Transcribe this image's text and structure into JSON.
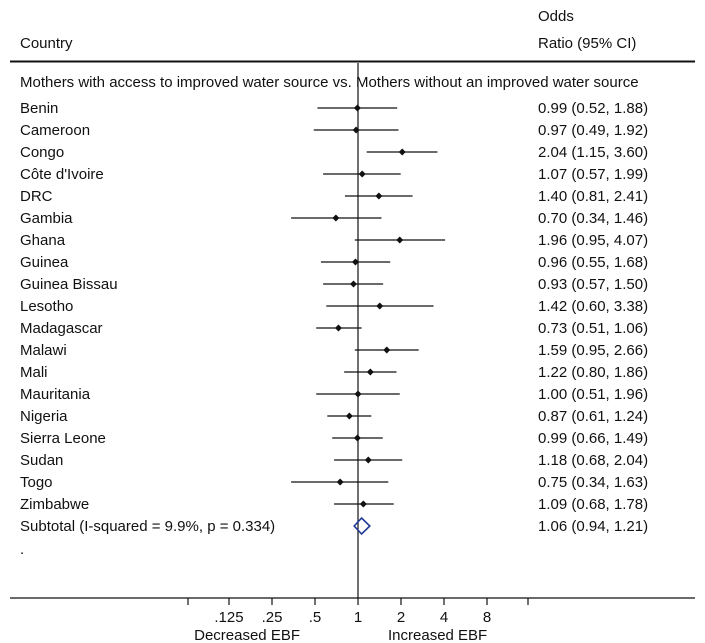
{
  "header": {
    "country_label": "Country",
    "or_label_line1": "Odds",
    "or_label_line2": "Ratio (95% CI)"
  },
  "group_label": "Mothers with access to improved water source vs. Mothers without an improved water source",
  "trailing_row_text": ".",
  "axis_captions": {
    "left": "Decreased EBF",
    "right": "Increased EBF"
  },
  "colors": {
    "point": "#111111",
    "diamond": "#1f3a93",
    "line": "#111111"
  },
  "chart_data": {
    "type": "forest",
    "x_scale": "log",
    "reference_value": 1,
    "ticks": [
      0.125,
      0.25,
      0.5,
      1,
      2,
      4,
      8
    ],
    "tick_labels": [
      ".125",
      ".25",
      ".5",
      "1",
      "2",
      "4",
      "8"
    ],
    "rows": [
      {
        "label": "Benin",
        "or": 0.99,
        "lo": 0.52,
        "hi": 1.88,
        "text": "0.99 (0.52, 1.88)"
      },
      {
        "label": "Cameroon",
        "or": 0.97,
        "lo": 0.49,
        "hi": 1.92,
        "text": "0.97 (0.49, 1.92)"
      },
      {
        "label": "Congo",
        "or": 2.04,
        "lo": 1.15,
        "hi": 3.6,
        "text": "2.04 (1.15, 3.60)"
      },
      {
        "label": "Côte d'Ivoire",
        "or": 1.07,
        "lo": 0.57,
        "hi": 1.99,
        "text": "1.07 (0.57, 1.99)"
      },
      {
        "label": "DRC",
        "or": 1.4,
        "lo": 0.81,
        "hi": 2.41,
        "text": "1.40 (0.81, 2.41)"
      },
      {
        "label": "Gambia",
        "or": 0.7,
        "lo": 0.34,
        "hi": 1.46,
        "text": "0.70 (0.34, 1.46)"
      },
      {
        "label": "Ghana",
        "or": 1.96,
        "lo": 0.95,
        "hi": 4.07,
        "text": "1.96 (0.95, 4.07)"
      },
      {
        "label": "Guinea",
        "or": 0.96,
        "lo": 0.55,
        "hi": 1.68,
        "text": "0.96 (0.55, 1.68)"
      },
      {
        "label": "Guinea Bissau",
        "or": 0.93,
        "lo": 0.57,
        "hi": 1.5,
        "text": "0.93 (0.57, 1.50)"
      },
      {
        "label": "Lesotho",
        "or": 1.42,
        "lo": 0.6,
        "hi": 3.38,
        "text": "1.42 (0.60, 3.38)"
      },
      {
        "label": "Madagascar",
        "or": 0.73,
        "lo": 0.51,
        "hi": 1.06,
        "text": "0.73 (0.51, 1.06)"
      },
      {
        "label": "Malawi",
        "or": 1.59,
        "lo": 0.95,
        "hi": 2.66,
        "text": "1.59 (0.95, 2.66)"
      },
      {
        "label": "Mali",
        "or": 1.22,
        "lo": 0.8,
        "hi": 1.86,
        "text": "1.22 (0.80, 1.86)"
      },
      {
        "label": "Mauritania",
        "or": 1.0,
        "lo": 0.51,
        "hi": 1.96,
        "text": "1.00 (0.51, 1.96)"
      },
      {
        "label": "Nigeria",
        "or": 0.87,
        "lo": 0.61,
        "hi": 1.24,
        "text": "0.87 (0.61, 1.24)"
      },
      {
        "label": "Sierra Leone",
        "or": 0.99,
        "lo": 0.66,
        "hi": 1.49,
        "text": "0.99 (0.66, 1.49)"
      },
      {
        "label": "Sudan",
        "or": 1.18,
        "lo": 0.68,
        "hi": 2.04,
        "text": "1.18 (0.68, 2.04)"
      },
      {
        "label": "Togo",
        "or": 0.75,
        "lo": 0.34,
        "hi": 1.63,
        "text": "0.75 (0.34, 1.63)"
      },
      {
        "label": "Zimbabwe",
        "or": 1.09,
        "lo": 0.68,
        "hi": 1.78,
        "text": "1.09 (0.68, 1.78)"
      }
    ],
    "subtotal": {
      "label": "Subtotal  (I-squared = 9.9%, p = 0.334)",
      "or": 1.06,
      "lo": 0.94,
      "hi": 1.21,
      "text": "1.06 (0.94, 1.21)"
    }
  }
}
